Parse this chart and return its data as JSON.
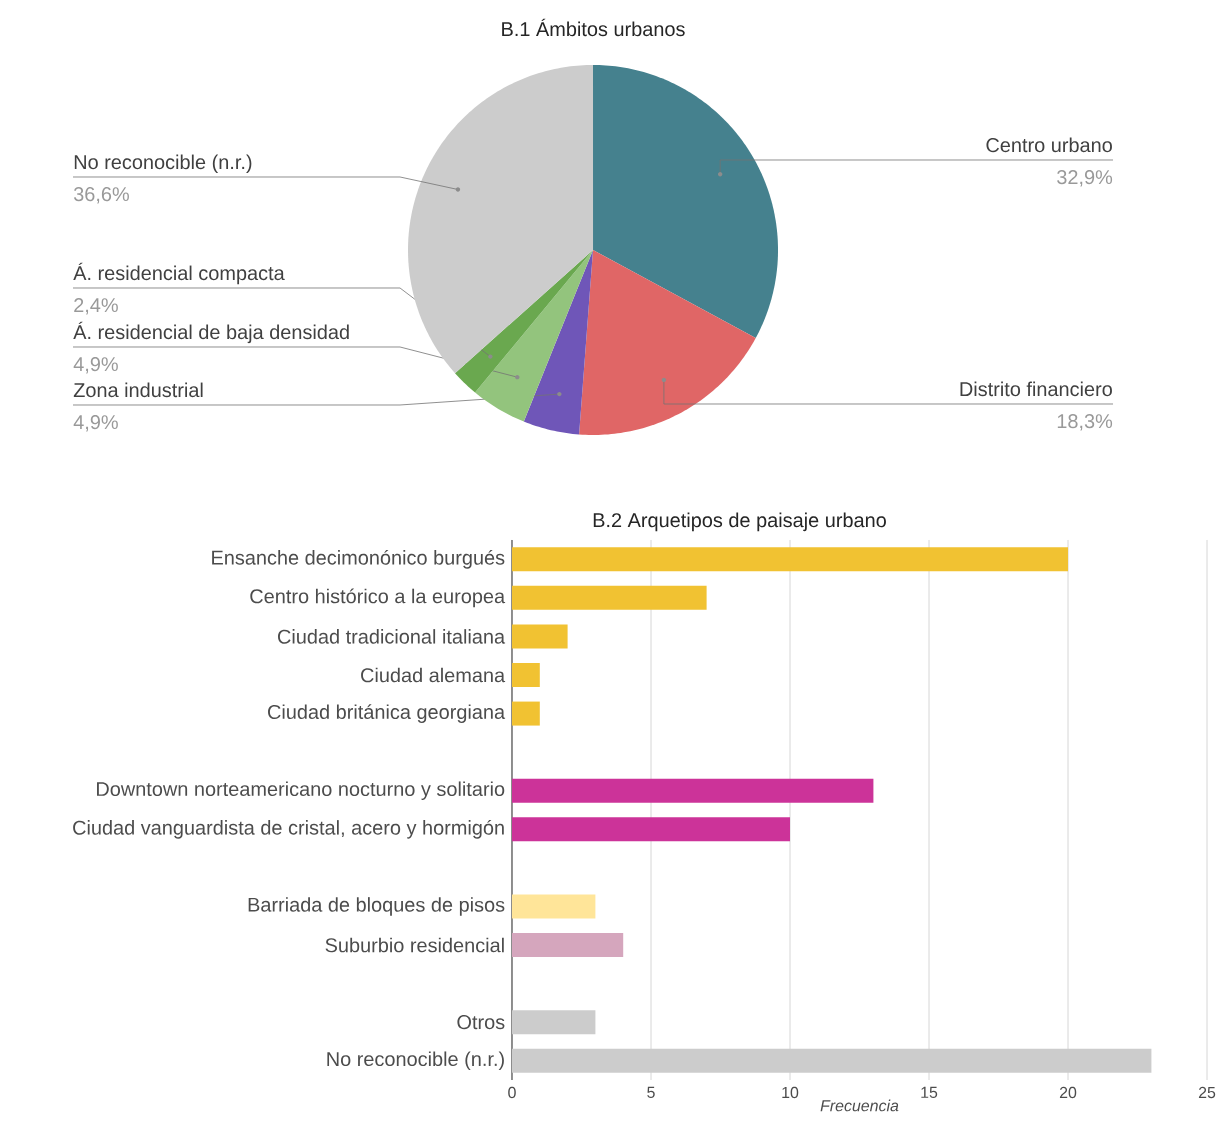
{
  "chart_data": [
    {
      "type": "pie",
      "title": "B.1 Ámbitos urbanos",
      "categories": [
        "Centro urbano",
        "Distrito financiero",
        "Zona industrial",
        "Á. residencial de baja densidad",
        "Á. residencial compacta",
        "No reconocible (n.r.)"
      ],
      "values": [
        32.9,
        18.3,
        4.9,
        4.9,
        2.4,
        36.6
      ],
      "colors": [
        "#45818e",
        "#e06666",
        "#6f56b8",
        "#93c47d",
        "#6aa84f",
        "#cccccc"
      ],
      "value_labels": [
        "32,9%",
        "18,3%",
        "4,9%",
        "4,9%",
        "2,4%",
        "36,6%"
      ]
    },
    {
      "type": "bar",
      "orientation": "horizontal",
      "title": "B.2 Arquetipos de paisaje urbano",
      "xlabel": "Frecuencia",
      "categories": [
        "Ensanche decimonónico burgués",
        "Centro histórico a la europea",
        "Ciudad tradicional italiana",
        "Ciudad alemana",
        "Ciudad británica georgiana",
        null,
        "Downtown norteamericano nocturno y solitario",
        "Ciudad vanguardista de cristal, acero y hormigón",
        null,
        "Barriada de bloques de pisos",
        "Suburbio residencial",
        null,
        "Otros",
        "No reconocible (n.r.)"
      ],
      "values": [
        20,
        7,
        2,
        1,
        1,
        null,
        13,
        10,
        null,
        3,
        4,
        null,
        3,
        23
      ],
      "colors": [
        "#f1c232",
        "#f1c232",
        "#f1c232",
        "#f1c232",
        "#f1c232",
        null,
        "#cc3399",
        "#cc3399",
        null,
        "#ffe599",
        "#d5a6bd",
        null,
        "#cccccc",
        "#cccccc"
      ],
      "xlim": [
        0,
        25
      ],
      "xticks": [
        0,
        5,
        10,
        15,
        20,
        25
      ],
      "grid": "x"
    }
  ]
}
